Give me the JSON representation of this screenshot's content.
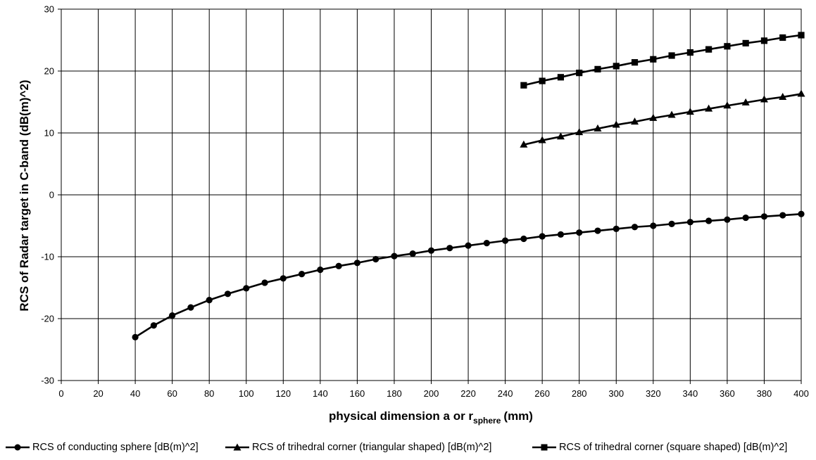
{
  "chart_data": {
    "type": "line",
    "title": "",
    "xlabel": "physical dimension a or r",
    "xlabel_sub": "sphere",
    "xlabel_unit": "(mm)",
    "ylabel": "RCS of Radar target in C-band (dB(m)^2)",
    "xlim": [
      0,
      400
    ],
    "ylim": [
      -30,
      30
    ],
    "x_ticks": [
      0,
      20,
      40,
      60,
      80,
      100,
      120,
      140,
      160,
      180,
      200,
      220,
      240,
      260,
      280,
      300,
      320,
      340,
      360,
      380,
      400
    ],
    "y_ticks": [
      -30,
      -20,
      -10,
      0,
      10,
      20,
      30
    ],
    "grid": true,
    "legend_position": "bottom",
    "series": [
      {
        "name": "RCS of conducting sphere [dB(m)^2]",
        "marker": "circle",
        "color": "#000000",
        "x": [
          40,
          50,
          60,
          70,
          80,
          90,
          100,
          110,
          120,
          130,
          140,
          150,
          160,
          170,
          180,
          190,
          200,
          210,
          220,
          230,
          240,
          250,
          260,
          270,
          280,
          290,
          300,
          310,
          320,
          330,
          340,
          350,
          360,
          370,
          380,
          390,
          400
        ],
        "y": [
          -23.0,
          -21.1,
          -19.5,
          -18.2,
          -17.0,
          -16.0,
          -15.1,
          -14.2,
          -13.5,
          -12.8,
          -12.1,
          -11.5,
          -11.0,
          -10.4,
          -9.9,
          -9.5,
          -9.0,
          -8.6,
          -8.2,
          -7.8,
          -7.4,
          -7.1,
          -6.7,
          -6.4,
          -6.1,
          -5.8,
          -5.5,
          -5.2,
          -5.0,
          -4.7,
          -4.4,
          -4.2,
          -4.0,
          -3.7,
          -3.5,
          -3.3,
          -3.1
        ]
      },
      {
        "name": "RCS of trihedral corner (triangular shaped) [dB(m)^2]",
        "marker": "triangle",
        "color": "#000000",
        "x": [
          250,
          260,
          270,
          280,
          290,
          300,
          310,
          320,
          330,
          340,
          350,
          360,
          370,
          380,
          390,
          400
        ],
        "y": [
          8.1,
          8.8,
          9.4,
          10.1,
          10.7,
          11.3,
          11.8,
          12.4,
          12.9,
          13.4,
          13.9,
          14.4,
          14.9,
          15.4,
          15.8,
          16.3
        ]
      },
      {
        "name": "RCS of trihedral corner (square shaped) [dB(m)^2]",
        "marker": "square",
        "color": "#000000",
        "x": [
          250,
          260,
          270,
          280,
          290,
          300,
          310,
          320,
          330,
          340,
          350,
          360,
          370,
          380,
          390,
          400
        ],
        "y": [
          17.7,
          18.4,
          19.0,
          19.7,
          20.3,
          20.8,
          21.4,
          21.9,
          22.5,
          23.0,
          23.5,
          24.0,
          24.5,
          24.9,
          25.4,
          25.8
        ]
      }
    ]
  }
}
